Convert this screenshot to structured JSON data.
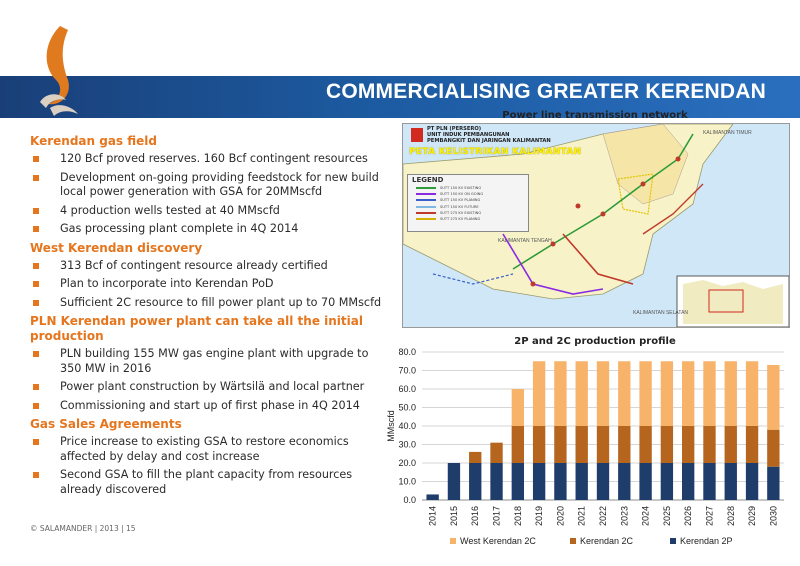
{
  "slide": {
    "title": "COMMERCIALISING GREATER KERENDAN",
    "footer": "© SALAMANDER  |  2013  |   15"
  },
  "sections": [
    {
      "heading": "Kerendan gas field",
      "bullets": [
        "120 Bcf proved reserves. 160 Bcf contingent resources",
        "Development on-going providing feedstock for new build local power generation with GSA for 20MMscfd",
        "4 production wells tested at 40 MMscfd",
        "Gas processing plant complete in 4Q 2014"
      ]
    },
    {
      "heading": "West Kerendan discovery",
      "bullets": [
        "313 Bcf of contingent resource already certified",
        "Plan to incorporate into Kerendan PoD",
        "Sufficient 2C resource to fill power plant up to 70 MMscfd"
      ]
    },
    {
      "heading": "PLN Kerendan power plant can take all the initial production",
      "bullets": [
        "PLN building 155 MW gas engine plant with upgrade to 350 MW in 2016",
        "Power plant construction by Wärtsilä and local partner",
        "Commissioning and start up of first phase in 4Q 2014"
      ]
    },
    {
      "heading": "Gas Sales Agreements",
      "bullets": [
        "Price increase to existing GSA to restore economics affected by delay and cost increase",
        "Second GSA to fill the plant capacity from resources already discovered"
      ]
    }
  ],
  "map": {
    "title": "Power line transmission network",
    "org_lines": [
      "PT PLN (PERSERO)",
      "UNIT INDUK PEMBANGUNAN",
      "PEMBANGKIT DAN JARINGAN KALIMANTAN"
    ],
    "map_name": "PETA KELISTRIKAN KALIMANTAN",
    "legend_title": "LEGEND",
    "legend_items": [
      {
        "label": "SUTT 150 KV EXISTING",
        "color": "#2f9b3a"
      },
      {
        "label": "SUTT 150 KV ON GOING",
        "color": "#8a2be2"
      },
      {
        "label": "SUTT 150 KV PLANING",
        "color": "#3a5fcd"
      },
      {
        "label": "SUTT 150 KV FUTURE",
        "color": "#7fb8e0"
      },
      {
        "label": "SUTT 275 KV EXISTING",
        "color": "#c0392b"
      },
      {
        "label": "SUTT 275 KV PLANING",
        "color": "#d4b000"
      }
    ],
    "region_labels": [
      "KALIMANTAN TIMUR",
      "KALIMANTAN TENGAH",
      "KALIMANTAN SELATAN"
    ]
  },
  "chart_data": {
    "type": "bar",
    "stacked": true,
    "title": "2P and 2C production profile",
    "ylabel": "MMscfd",
    "xlabel": "",
    "ylim": [
      0,
      80
    ],
    "yticks": [
      "0.0",
      "10.0",
      "20.0",
      "30.0",
      "40.0",
      "50.0",
      "60.0",
      "70.0",
      "80.0"
    ],
    "grid": true,
    "legend_position": "bottom",
    "categories": [
      "2014",
      "2015",
      "2016",
      "2017",
      "2018",
      "2019",
      "2020",
      "2021",
      "2022",
      "2023",
      "2024",
      "2025",
      "2026",
      "2027",
      "2028",
      "2029",
      "2030"
    ],
    "series": [
      {
        "name": "Kerendan 2P",
        "color": "#1f3d6b",
        "values": [
          3,
          20,
          20,
          20,
          20,
          20,
          20,
          20,
          20,
          20,
          20,
          20,
          20,
          20,
          20,
          20,
          18
        ]
      },
      {
        "name": "Kerendan 2C",
        "color": "#b5651d",
        "values": [
          0,
          0,
          6,
          11,
          20,
          20,
          20,
          20,
          20,
          20,
          20,
          20,
          20,
          20,
          20,
          20,
          20
        ]
      },
      {
        "name": "West Kerendan 2C",
        "color": "#f7b36a",
        "values": [
          0,
          0,
          0,
          0,
          20,
          35,
          35,
          35,
          35,
          35,
          35,
          35,
          35,
          35,
          35,
          35,
          35
        ]
      }
    ],
    "legend_order": [
      "West Kerendan 2C",
      "Kerendan 2C",
      "Kerendan 2P"
    ]
  }
}
